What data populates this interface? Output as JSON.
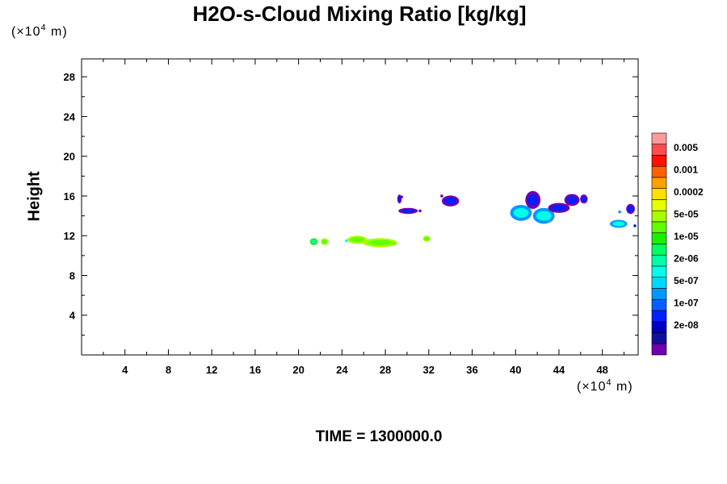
{
  "title": "H2O-s-Cloud Mixing Ratio [kg/kg]",
  "unit_top": {
    "prefix": "(×10",
    "exp": "4",
    "suffix": " m)"
  },
  "unit_bottom": {
    "prefix": "(×10",
    "exp": "4",
    "suffix": " m)"
  },
  "ylabel": "Height",
  "time_label": "TIME = 1300000.0",
  "chart_data": {
    "type": "heatmap",
    "title": "H2O-s-Cloud Mixing Ratio [kg/kg]",
    "xlabel": "",
    "ylabel": "Height",
    "xlim": [
      0,
      51.3
    ],
    "ylim": [
      0,
      29.8
    ],
    "x_ticks": [
      4,
      8,
      12,
      16,
      20,
      24,
      28,
      32,
      36,
      40,
      44,
      48
    ],
    "y_ticks": [
      4,
      8,
      12,
      16,
      20,
      24,
      28
    ],
    "colorbar": {
      "labels": [
        "0.005",
        "0.001",
        "0.0002",
        "5e-05",
        "1e-05",
        "2e-06",
        "5e-07",
        "1e-07",
        "2e-08"
      ],
      "colors": [
        "#ff9a9a",
        "#ff4d4d",
        "#ff1000",
        "#ff6000",
        "#ffa000",
        "#ffe000",
        "#e8ff00",
        "#a8ff00",
        "#60ff00",
        "#18f000",
        "#00ff60",
        "#00ffa8",
        "#00ffe8",
        "#00d8ff",
        "#0098ff",
        "#0060ff",
        "#0020ff",
        "#0000c0",
        "#1010a0",
        "#7000b0"
      ]
    },
    "cloud_patches": [
      {
        "x": 21.4,
        "y": 11.4,
        "level": "2e-06"
      },
      {
        "x": 22.4,
        "y": 11.4,
        "level": "1e-05"
      },
      {
        "x": 25.4,
        "y": 11.6,
        "level": "1e-05"
      },
      {
        "x": 27.5,
        "y": 11.3,
        "level": "1e-05"
      },
      {
        "x": 31.8,
        "y": 11.7,
        "level": "1e-05"
      },
      {
        "x": 29.3,
        "y": 15.7,
        "level": "1e-07"
      },
      {
        "x": 30.1,
        "y": 14.5,
        "level": "1e-07"
      },
      {
        "x": 34.0,
        "y": 15.5,
        "level": "1e-07"
      },
      {
        "x": 40.5,
        "y": 14.3,
        "level": "5e-07"
      },
      {
        "x": 41.6,
        "y": 15.6,
        "level": "1e-07"
      },
      {
        "x": 42.6,
        "y": 14.0,
        "level": "5e-07"
      },
      {
        "x": 44.0,
        "y": 14.8,
        "level": "1e-07"
      },
      {
        "x": 45.2,
        "y": 15.6,
        "level": "1e-07"
      },
      {
        "x": 46.3,
        "y": 15.7,
        "level": "1e-07"
      },
      {
        "x": 49.5,
        "y": 13.2,
        "level": "5e-07"
      },
      {
        "x": 50.6,
        "y": 14.7,
        "level": "1e-07"
      }
    ]
  }
}
